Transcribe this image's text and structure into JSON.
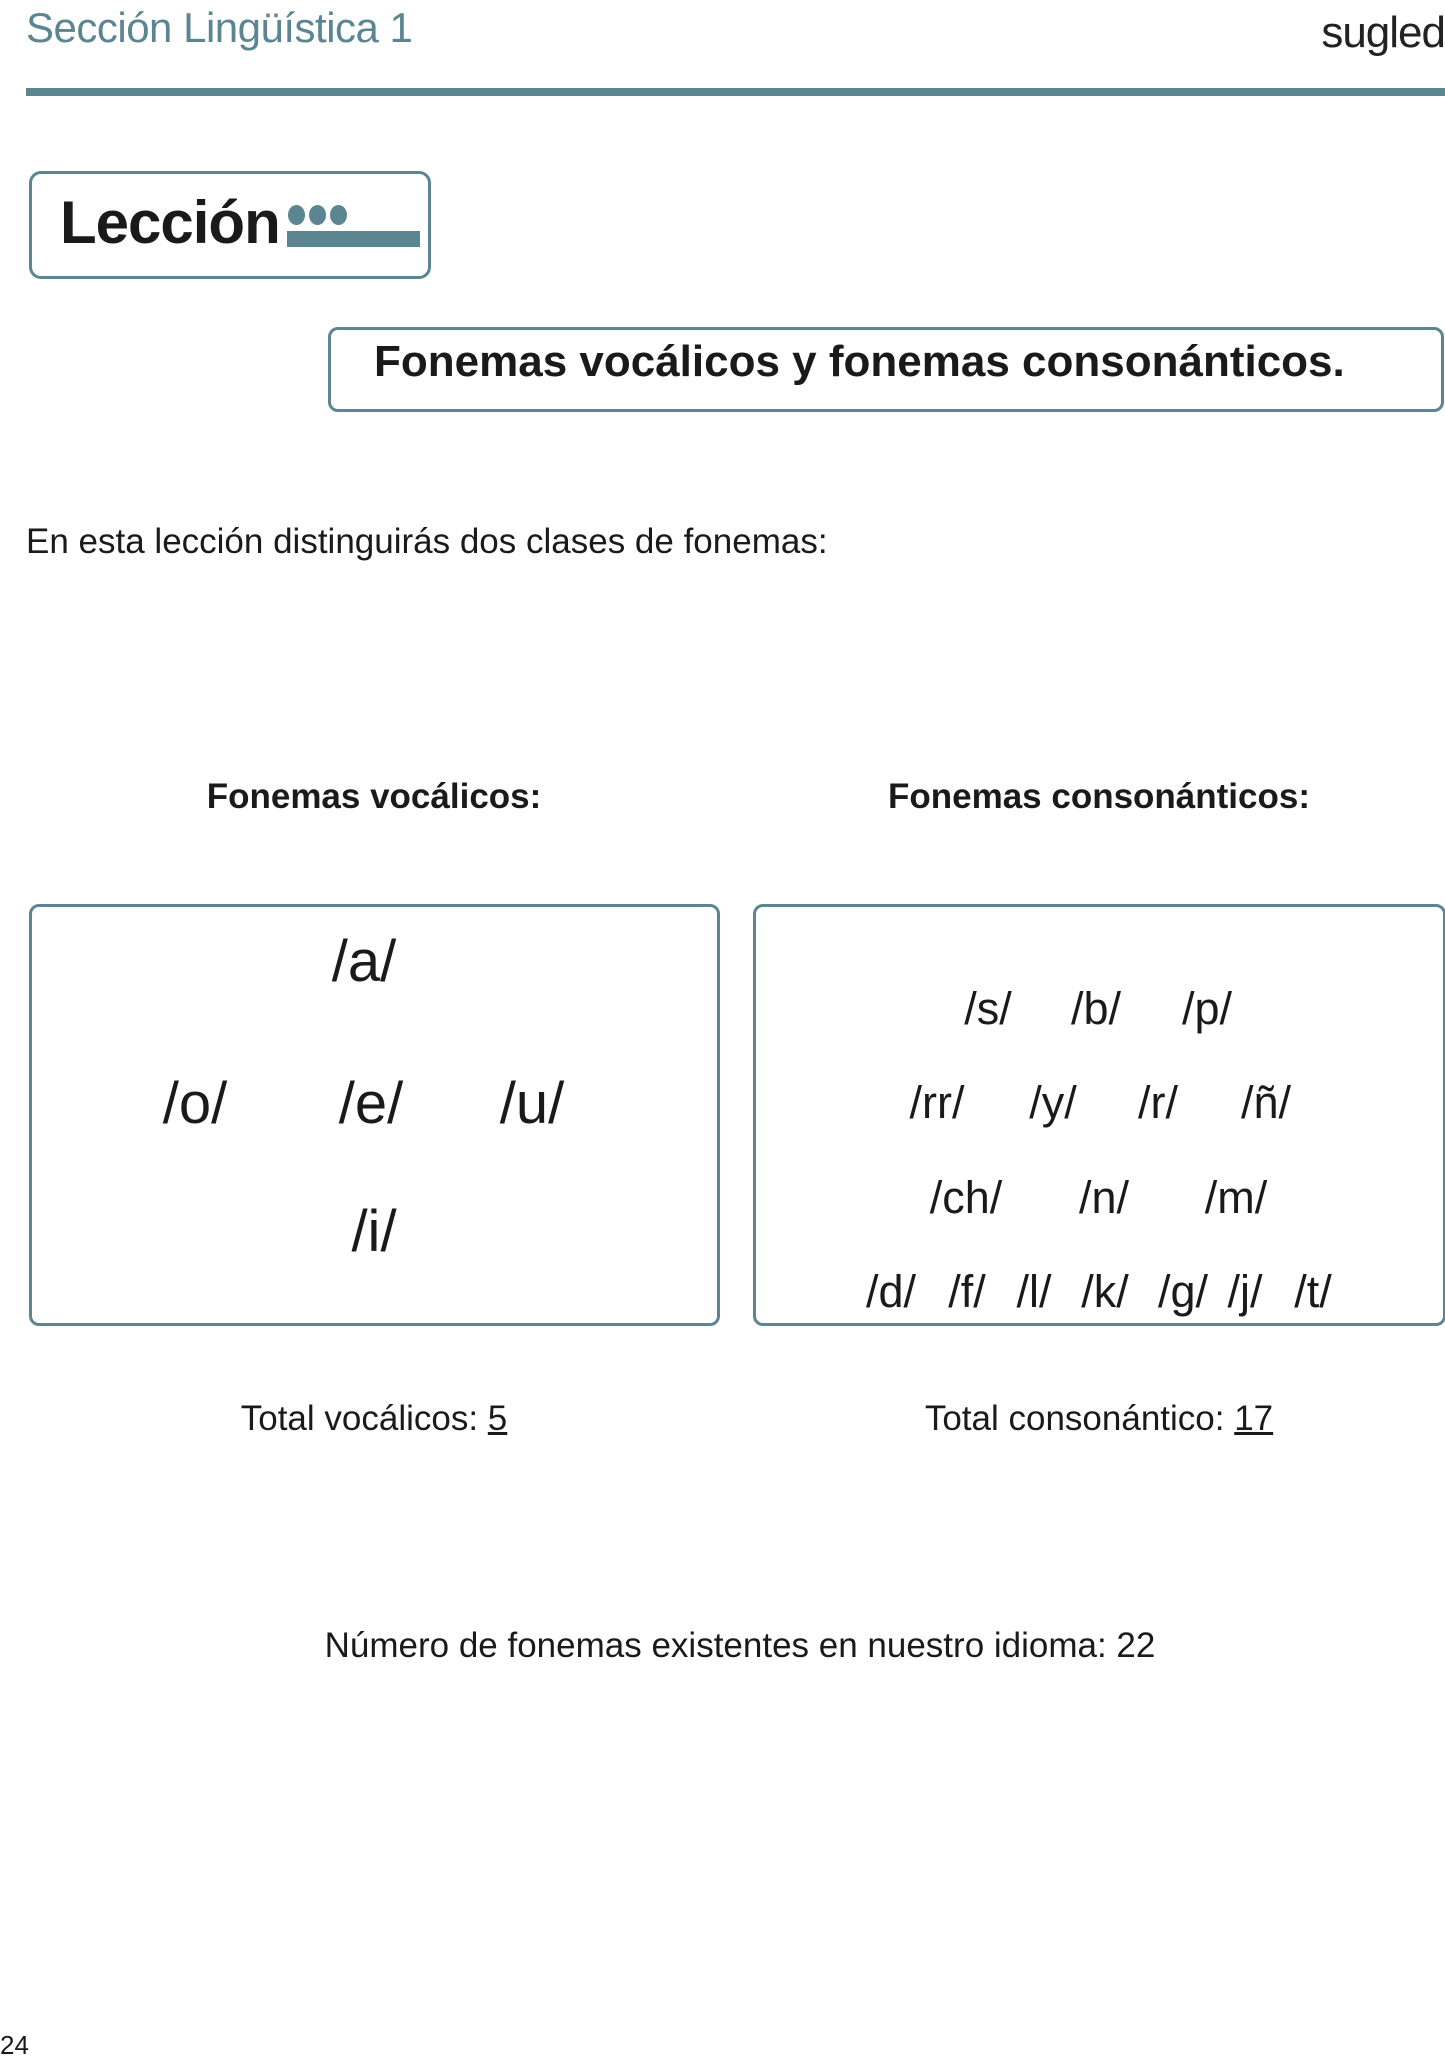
{
  "header": {
    "section": "Sección Lingüística 1",
    "logo": "sugled"
  },
  "lesson_label": "Lección",
  "title": "Fonemas vocálicos y fonemas consonánticos.",
  "intro": "En esta lección distinguirás dos clases de fonemas:",
  "vowels": {
    "heading": "Fonemas vocálicos:",
    "items": [
      "/a/",
      "/o/",
      "/e/",
      "/u/",
      "/i/"
    ],
    "total_label": "Total vocálicos: ",
    "total": "5"
  },
  "consonants": {
    "heading": "Fonemas consonánticos:",
    "rows": [
      [
        "/s/",
        "/b/",
        "/p/"
      ],
      [
        "/rr/",
        "/y/",
        "/r/",
        "/ñ/"
      ],
      [
        "/ch/",
        "/n/",
        "/m/"
      ],
      [
        "/d/",
        "/f/",
        "/l/",
        "/k/",
        "/g/",
        "/j/",
        "/t/"
      ]
    ],
    "total_label": "Total consonántico: ",
    "total": "17"
  },
  "summary": "Número de fonemas existentes en nuestro idioma: 22",
  "page_number": "24",
  "colors": {
    "accent": "#5b8590"
  }
}
